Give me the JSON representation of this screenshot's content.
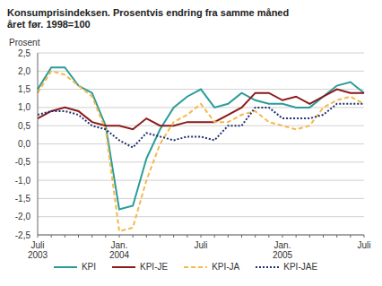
{
  "chart_data": {
    "type": "line",
    "title": "Konsumprisindeksen. Prosentvis endring fra samme måned året før. 1998=100",
    "y_label": "Prosent",
    "categories": [
      "Juli 2003",
      null,
      null,
      null,
      null,
      null,
      "Jan. 2004",
      null,
      null,
      null,
      null,
      null,
      "Juli",
      null,
      null,
      null,
      null,
      null,
      "Jan. 2005",
      null,
      null,
      null,
      null,
      null,
      "Juli"
    ],
    "series": [
      {
        "name": "KPI",
        "color": "#2a9c98",
        "line_style": "solid",
        "values": [
          1.5,
          2.1,
          2.1,
          1.6,
          1.4,
          0.5,
          -1.8,
          -1.7,
          -0.4,
          0.4,
          1.0,
          1.3,
          1.5,
          1.0,
          1.1,
          1.4,
          1.2,
          1.1,
          1.1,
          1.0,
          1.0,
          1.3,
          1.6,
          1.7,
          1.4
        ]
      },
      {
        "name": "KPI-JE",
        "color": "#8b1a1a",
        "line_style": "solid",
        "values": [
          0.7,
          0.9,
          1.0,
          0.9,
          0.6,
          0.5,
          0.5,
          0.4,
          0.7,
          0.5,
          0.5,
          0.6,
          0.6,
          0.6,
          0.8,
          1.0,
          1.4,
          1.4,
          1.2,
          1.3,
          1.1,
          1.3,
          1.5,
          1.4,
          1.4
        ]
      },
      {
        "name": "KPI-JA",
        "color": "#f5b94a",
        "line_style": "dashed",
        "values": [
          1.4,
          2.0,
          1.9,
          1.6,
          1.3,
          0.4,
          -2.4,
          -2.3,
          -1.0,
          0.0,
          0.6,
          0.8,
          1.1,
          0.6,
          0.6,
          0.8,
          0.9,
          0.6,
          0.5,
          0.4,
          0.5,
          1.0,
          1.2,
          1.3,
          1.1
        ]
      },
      {
        "name": "KPI-JAE",
        "color": "#1f2f6e",
        "line_style": "dotted",
        "values": [
          0.8,
          0.9,
          0.9,
          0.8,
          0.5,
          0.4,
          0.1,
          -0.1,
          0.3,
          0.2,
          0.1,
          0.2,
          0.2,
          0.1,
          0.5,
          0.5,
          1.0,
          1.0,
          0.7,
          0.7,
          0.7,
          0.8,
          1.1,
          1.1,
          1.1
        ]
      }
    ],
    "ylim": [
      -2.5,
      2.5
    ],
    "yticks": [
      {
        "value": -2.5,
        "label": "-2,5"
      },
      {
        "value": -2.0,
        "label": "-2,0"
      },
      {
        "value": -1.5,
        "label": "-1,5"
      },
      {
        "value": -1.0,
        "label": "-1,0"
      },
      {
        "value": -0.5,
        "label": "-0,5"
      },
      {
        "value": 0,
        "label": "0,0"
      },
      {
        "value": 0.5,
        "label": "0,5"
      },
      {
        "value": 1.0,
        "label": "1,0"
      },
      {
        "value": 1.5,
        "label": "1,5"
      },
      {
        "value": 2.0,
        "label": "2,0"
      },
      {
        "value": 2.5,
        "label": "2,5"
      }
    ],
    "grid": true,
    "legend": "bottom"
  }
}
